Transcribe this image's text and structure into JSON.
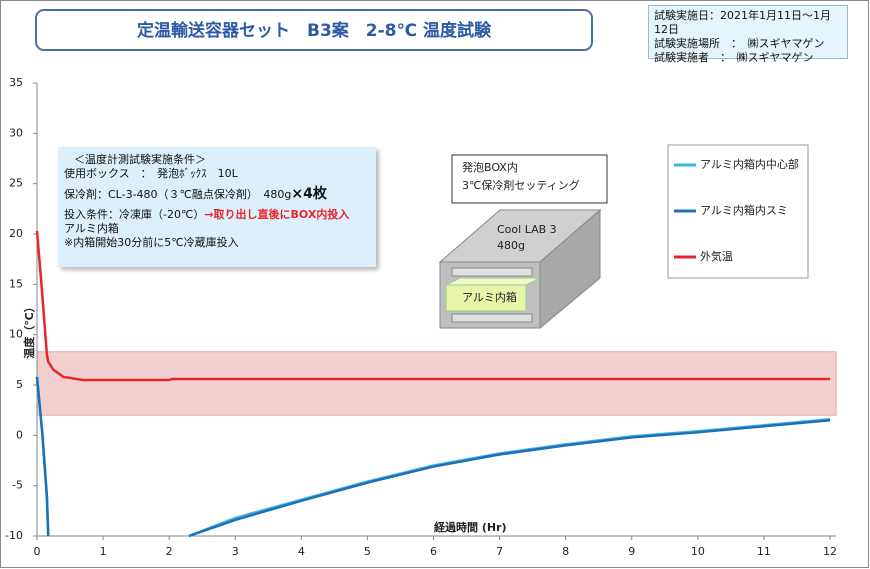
{
  "chart_data": {
    "type": "line",
    "title": "定温輸送容器セット　B3案　2-8℃ 温度試験",
    "info": [
      "試験実施日：2021年1月11日～1月12日",
      "試験実施場所　：　㈱スギヤマゲン",
      "試験実施者　：　㈱スギヤマゲン"
    ],
    "conditions": {
      "heading": "＜温度計測試験実施条件＞",
      "box": "使用ボックス　：　発泡ﾎﾞｯｸｽ　10L",
      "coolant": "保冷剤：CL-3-480（３℃融点保冷剤）　480g",
      "coolant_count": "×4枚",
      "input": "投入条件：冷凍庫（-20℃）",
      "input_note": "→取り出し直後にBOX内投入",
      "inner": "アルミ内箱",
      "inner_note": "※内箱開始30分前に5℃冷蔵庫投入"
    },
    "diagram": {
      "heading": [
        "発泡BOX内",
        "3℃保冷剤セッティング"
      ],
      "coolant": "Cool LAB 3",
      "weight": "480g",
      "inner": "アルミ内箱"
    },
    "x_label": "経過時間 (Hr)",
    "y_label": "温度（℃）",
    "x": [
      0,
      0.08,
      0.15,
      0.17,
      0.25,
      0.4,
      0.7,
      2,
      2.05,
      2.3,
      3,
      4,
      5,
      6,
      7,
      8,
      9,
      10,
      11,
      12
    ],
    "series": [
      {
        "name": "アルミ内箱内中心部",
        "color": "#3cb4e6",
        "values": [
          5.8,
          0.3,
          -6,
          -10,
          null,
          null,
          null,
          null,
          null,
          -10,
          -8.2,
          -6.4,
          -4.6,
          -3.0,
          -1.8,
          -0.9,
          -0.1,
          0.4,
          1.0,
          1.6
        ]
      },
      {
        "name": "アルミ内箱内スミ",
        "color": "#1f6fb4",
        "values": [
          5.8,
          0.2,
          -6.2,
          -10,
          null,
          null,
          null,
          null,
          null,
          -10,
          -8.4,
          -6.5,
          -4.7,
          -3.1,
          -1.9,
          -1.0,
          -0.2,
          0.3,
          0.9,
          1.5
        ]
      },
      {
        "name": "外気温",
        "color": "#e8262a",
        "values": [
          20.3,
          14,
          8,
          7.3,
          6.5,
          5.8,
          5.5,
          5.5,
          5.6,
          5.6,
          5.6,
          5.6,
          5.6,
          5.6,
          5.6,
          5.6,
          5.6,
          5.6,
          5.6,
          5.6
        ]
      }
    ],
    "band": {
      "range": [
        2,
        8.3
      ],
      "color": "#f2d0d0"
    },
    "xlim": [
      0,
      12
    ],
    "xticks": [
      0,
      1,
      2,
      3,
      4,
      5,
      6,
      7,
      8,
      9,
      10,
      11,
      12
    ],
    "ylim": [
      -10,
      35
    ],
    "yticks": [
      -10,
      -5,
      0,
      5,
      10,
      15,
      20,
      25,
      30,
      35
    ],
    "grid": false
  }
}
